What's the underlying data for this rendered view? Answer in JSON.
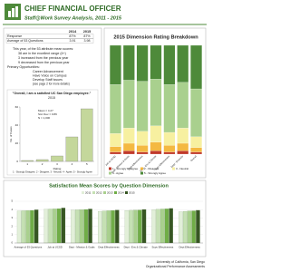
{
  "header": {
    "title": "CHIEF FINANCIAL OFFICER",
    "subtitle": "Staff@Work Survey Analysis, 2011 - 2015"
  },
  "summary_table": {
    "columns": [
      "2014",
      "2015"
    ],
    "rows": [
      [
        "Response",
        "87%",
        "87%"
      ],
      [
        "Average of 53 Questions",
        "3.91",
        "3.98"
      ]
    ]
  },
  "notes": {
    "intro": "This year, of the 53 attribute mean scores:",
    "items": [
      "38 are in the excellent range (4+)",
      "3 increased from the previous year",
      "9 decreased from the previous year"
    ],
    "opportunities_title": "Primary Opportunities:",
    "opportunities": [
      "Career Advancement",
      "Have Voice on Campus",
      "Develop Staff Issues"
    ],
    "opportunities_note": "(see page 2 for more details)"
  },
  "chart_data": [
    {
      "type": "bar",
      "title": "\"Overall, I am a satisfied UC San Diego employee.\"",
      "subtitle": "2015",
      "y_label": "No. of Cases",
      "x_label": "Rating",
      "categories": [
        "1",
        "2",
        "3",
        "4",
        "5"
      ],
      "values": [
        1,
        2,
        6,
        27,
        58
      ],
      "color": "#c4d79b",
      "annotations": [
        "Mean = 4.27",
        "Std. Dev = 0.89",
        "N = 1,000"
      ],
      "caption": "1 - Strongly Disagree, 2 - Disagree, 3 - Neutral, 4 - Agree, 5 - Strongly Agree",
      "ylim": [
        0,
        60
      ],
      "yticks": [
        0,
        20,
        40,
        60
      ]
    },
    {
      "type": "stacked-bar",
      "title": "2015 Dimension Rating Breakdown",
      "categories": [
        "Job at UCSD",
        "Dept - Mission & Goals",
        "Dept Effectiveness",
        "Dept - Env & Climate",
        "Supv Effectiveness",
        "Dept - Diversity",
        "Overall"
      ],
      "series": [
        {
          "name": "1 - Strongly Disagree",
          "color": "#c0392b",
          "values": [
            2,
            3,
            2,
            3,
            2,
            3,
            2
          ]
        },
        {
          "name": "2 - Disagree",
          "color": "#f4b942",
          "values": [
            5,
            7,
            6,
            8,
            6,
            7,
            4
          ]
        },
        {
          "name": "3 - Neutral",
          "color": "#f7f0a0",
          "values": [
            12,
            14,
            13,
            15,
            12,
            14,
            10
          ]
        },
        {
          "name": "4 - Agree",
          "color": "#a9d08e",
          "values": [
            45,
            44,
            46,
            43,
            44,
            42,
            44
          ]
        },
        {
          "name": "5 - Strongly Agree",
          "color": "#4e8a3a",
          "values": [
            36,
            32,
            33,
            31,
            36,
            34,
            40
          ]
        }
      ],
      "ylim": [
        0,
        100
      ]
    },
    {
      "type": "grouped-bar",
      "title": "Satisfaction Mean Scores by Question Dimension",
      "categories": [
        "Average of 53 Questions",
        "Job at UCSD",
        "Dept - Mission & Goals",
        "Dept Effectiveness",
        "Dept - Env & Climate",
        "Supv Effectiveness",
        "Dept Effectiveness"
      ],
      "series": [
        {
          "name": "2011",
          "color": "#e2efd9",
          "values": [
            3.85,
            4.05,
            3.95,
            3.8,
            3.9,
            4.0,
            3.75
          ]
        },
        {
          "name": "2012",
          "color": "#c5e0b3",
          "values": [
            3.88,
            4.08,
            3.98,
            3.85,
            3.92,
            4.05,
            3.8
          ]
        },
        {
          "name": "2013",
          "color": "#a9d08e",
          "values": [
            3.9,
            4.1,
            4.0,
            3.88,
            3.95,
            4.08,
            3.85
          ]
        },
        {
          "name": "2014",
          "color": "#70ad47",
          "values": [
            3.91,
            4.12,
            4.02,
            3.9,
            3.96,
            4.1,
            3.86
          ]
        },
        {
          "name": "2015",
          "color": "#375623",
          "values": [
            3.98,
            4.2,
            4.08,
            3.95,
            4.02,
            4.15,
            3.92
          ]
        }
      ],
      "ylim": [
        0,
        5
      ],
      "yticks": [
        0,
        1,
        2,
        3,
        4,
        5
      ]
    }
  ],
  "footer": {
    "line1": "University of California, San Diego",
    "line2": "Organizational Performance Assessments"
  }
}
